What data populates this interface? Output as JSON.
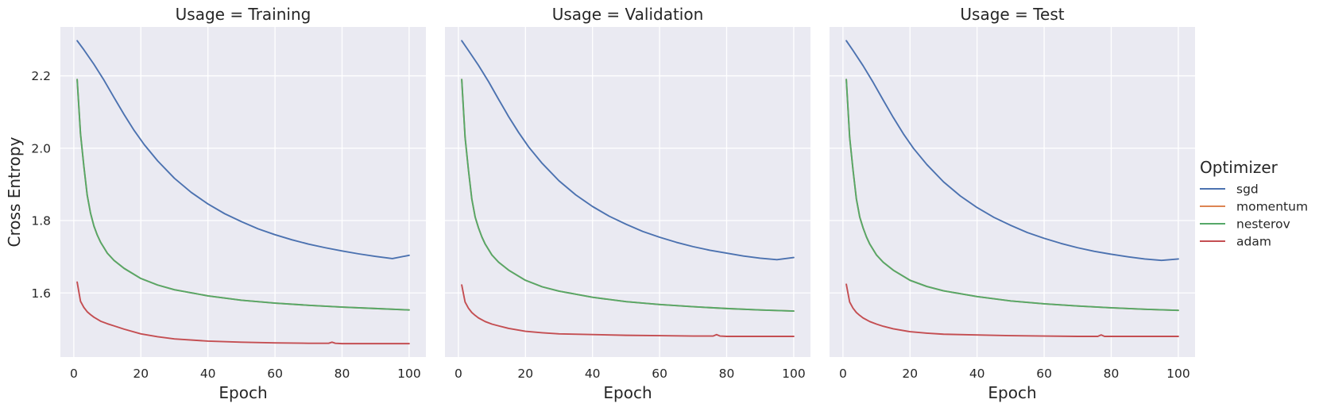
{
  "chart_data": {
    "type": "line",
    "facet_label": "Usage",
    "panels": [
      {
        "title": "Usage = Training",
        "series": [
          {
            "name": "sgd",
            "x": [
              1,
              3,
              6,
              9,
              12,
              15,
              18,
              21,
              25,
              30,
              35,
              40,
              45,
              50,
              55,
              60,
              65,
              70,
              75,
              80,
              85,
              90,
              95,
              100
            ],
            "y": [
              2.297,
              2.272,
              2.232,
              2.188,
              2.14,
              2.093,
              2.049,
              2.01,
              1.965,
              1.917,
              1.878,
              1.846,
              1.819,
              1.797,
              1.777,
              1.761,
              1.747,
              1.735,
              1.725,
              1.716,
              1.708,
              1.701,
              1.695,
              1.704
            ]
          },
          {
            "name": "momentum",
            "x": [
              1,
              2,
              3,
              4,
              5,
              6,
              7,
              8,
              10,
              12,
              15,
              20,
              25,
              30,
              40,
              50,
              60,
              70,
              80,
              90,
              100
            ],
            "y": [
              2.19,
              2.04,
              1.95,
              1.87,
              1.82,
              1.785,
              1.76,
              1.74,
              1.71,
              1.69,
              1.668,
              1.64,
              1.622,
              1.609,
              1.592,
              1.58,
              1.572,
              1.566,
              1.561,
              1.557,
              1.553
            ]
          },
          {
            "name": "nesterov",
            "x": [
              1,
              2,
              3,
              4,
              5,
              6,
              7,
              8,
              10,
              12,
              15,
              20,
              25,
              30,
              40,
              50,
              60,
              70,
              80,
              90,
              100
            ],
            "y": [
              2.19,
              2.04,
              1.95,
              1.87,
              1.82,
              1.785,
              1.76,
              1.74,
              1.71,
              1.69,
              1.668,
              1.64,
              1.622,
              1.609,
              1.592,
              1.58,
              1.572,
              1.566,
              1.561,
              1.557,
              1.553
            ]
          },
          {
            "name": "adam",
            "x": [
              1,
              2,
              3,
              4,
              5,
              6,
              8,
              10,
              12,
              15,
              20,
              25,
              30,
              40,
              50,
              60,
              70,
              76,
              77,
              78,
              80,
              90,
              100
            ],
            "y": [
              1.63,
              1.577,
              1.56,
              1.548,
              1.54,
              1.533,
              1.522,
              1.515,
              1.509,
              1.5,
              1.487,
              1.479,
              1.473,
              1.467,
              1.464,
              1.462,
              1.461,
              1.461,
              1.464,
              1.461,
              1.46,
              1.46,
              1.46
            ]
          }
        ]
      },
      {
        "title": "Usage = Validation",
        "series": [
          {
            "name": "sgd",
            "x": [
              1,
              3,
              6,
              9,
              12,
              15,
              18,
              21,
              25,
              30,
              35,
              40,
              45,
              50,
              55,
              60,
              65,
              70,
              75,
              80,
              85,
              90,
              95,
              100
            ],
            "y": [
              2.297,
              2.27,
              2.229,
              2.184,
              2.135,
              2.087,
              2.043,
              2.003,
              1.958,
              1.91,
              1.871,
              1.839,
              1.812,
              1.79,
              1.77,
              1.754,
              1.74,
              1.728,
              1.718,
              1.71,
              1.702,
              1.696,
              1.692,
              1.698
            ]
          },
          {
            "name": "momentum",
            "x": [
              1,
              2,
              3,
              4,
              5,
              6,
              7,
              8,
              10,
              12,
              15,
              20,
              25,
              30,
              40,
              50,
              60,
              70,
              80,
              90,
              100
            ],
            "y": [
              2.19,
              2.03,
              1.94,
              1.86,
              1.81,
              1.78,
              1.755,
              1.735,
              1.705,
              1.685,
              1.663,
              1.635,
              1.617,
              1.605,
              1.588,
              1.576,
              1.568,
              1.562,
              1.557,
              1.553,
              1.55
            ]
          },
          {
            "name": "nesterov",
            "x": [
              1,
              2,
              3,
              4,
              5,
              6,
              7,
              8,
              10,
              12,
              15,
              20,
              25,
              30,
              40,
              50,
              60,
              70,
              80,
              90,
              100
            ],
            "y": [
              2.19,
              2.03,
              1.94,
              1.86,
              1.81,
              1.78,
              1.755,
              1.735,
              1.705,
              1.685,
              1.663,
              1.635,
              1.617,
              1.605,
              1.588,
              1.576,
              1.568,
              1.562,
              1.557,
              1.553,
              1.55
            ]
          },
          {
            "name": "adam",
            "x": [
              1,
              2,
              3,
              4,
              5,
              6,
              8,
              10,
              12,
              15,
              20,
              25,
              30,
              40,
              50,
              60,
              70,
              76,
              77,
              78,
              80,
              90,
              100
            ],
            "y": [
              1.622,
              1.575,
              1.558,
              1.546,
              1.538,
              1.531,
              1.521,
              1.514,
              1.509,
              1.502,
              1.494,
              1.49,
              1.487,
              1.485,
              1.483,
              1.482,
              1.481,
              1.481,
              1.485,
              1.481,
              1.48,
              1.48,
              1.48
            ]
          }
        ]
      },
      {
        "title": "Usage = Test",
        "series": [
          {
            "name": "sgd",
            "x": [
              1,
              3,
              6,
              9,
              12,
              15,
              18,
              21,
              25,
              30,
              35,
              40,
              45,
              50,
              55,
              60,
              65,
              70,
              75,
              80,
              85,
              90,
              95,
              100
            ],
            "y": [
              2.297,
              2.27,
              2.228,
              2.182,
              2.133,
              2.085,
              2.04,
              2.0,
              1.955,
              1.907,
              1.868,
              1.836,
              1.809,
              1.787,
              1.767,
              1.751,
              1.737,
              1.725,
              1.715,
              1.707,
              1.7,
              1.694,
              1.69,
              1.694
            ]
          },
          {
            "name": "momentum",
            "x": [
              1,
              2,
              3,
              4,
              5,
              6,
              7,
              8,
              10,
              12,
              15,
              20,
              25,
              30,
              40,
              50,
              60,
              70,
              80,
              90,
              100
            ],
            "y": [
              2.19,
              2.03,
              1.94,
              1.86,
              1.81,
              1.78,
              1.755,
              1.735,
              1.705,
              1.685,
              1.663,
              1.635,
              1.618,
              1.606,
              1.59,
              1.578,
              1.57,
              1.564,
              1.559,
              1.555,
              1.552
            ]
          },
          {
            "name": "nesterov",
            "x": [
              1,
              2,
              3,
              4,
              5,
              6,
              7,
              8,
              10,
              12,
              15,
              20,
              25,
              30,
              40,
              50,
              60,
              70,
              80,
              90,
              100
            ],
            "y": [
              2.19,
              2.03,
              1.94,
              1.86,
              1.81,
              1.78,
              1.755,
              1.735,
              1.705,
              1.685,
              1.663,
              1.635,
              1.618,
              1.606,
              1.59,
              1.578,
              1.57,
              1.564,
              1.559,
              1.555,
              1.552
            ]
          },
          {
            "name": "adam",
            "x": [
              1,
              2,
              3,
              4,
              5,
              6,
              8,
              10,
              12,
              15,
              20,
              25,
              30,
              40,
              50,
              60,
              70,
              76,
              77,
              78,
              80,
              90,
              100
            ],
            "y": [
              1.624,
              1.575,
              1.558,
              1.546,
              1.538,
              1.531,
              1.521,
              1.514,
              1.508,
              1.501,
              1.493,
              1.489,
              1.486,
              1.484,
              1.482,
              1.481,
              1.48,
              1.48,
              1.484,
              1.48,
              1.48,
              1.48,
              1.48
            ]
          }
        ]
      }
    ],
    "xlabel": "Epoch",
    "ylabel": "Cross Entropy",
    "xlim": [
      -4,
      105
    ],
    "ylim": [
      1.423,
      2.335
    ],
    "xticks": [
      0,
      20,
      40,
      60,
      80,
      100
    ],
    "yticks": [
      1.6,
      1.8,
      2.0,
      2.2
    ],
    "ytick_labels": [
      "1.6",
      "1.8",
      "2.0",
      "2.2"
    ],
    "grid": true,
    "legend": {
      "title": "Optimizer",
      "placement": "right",
      "entries": [
        "sgd",
        "momentum",
        "nesterov",
        "adam"
      ]
    },
    "colors": {
      "sgd": "#4c72b0",
      "momentum": "#dd8452",
      "nesterov": "#55a868",
      "adam": "#c44e52",
      "panel_background": "#eaeaf2",
      "grid": "#ffffff"
    }
  }
}
